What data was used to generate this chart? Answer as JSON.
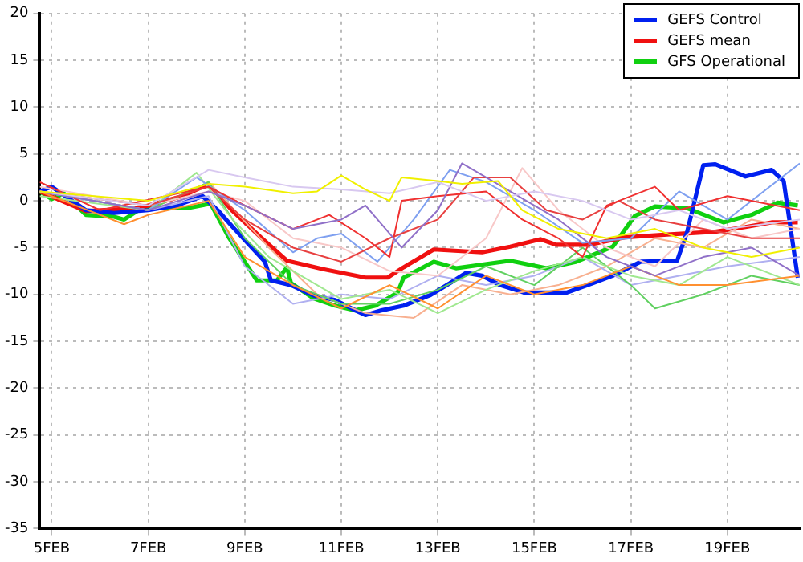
{
  "chart_data": {
    "type": "line",
    "xlim": [
      "--02-04T18:00",
      "--02-20T12:00"
    ],
    "ylim": [
      -35,
      20
    ],
    "xticks": [
      {
        "value": "--02-05",
        "label": "5FEB"
      },
      {
        "value": "--02-07",
        "label": "7FEB"
      },
      {
        "value": "--02-09",
        "label": "9FEB"
      },
      {
        "value": "--02-11",
        "label": "11FEB"
      },
      {
        "value": "--02-13",
        "label": "13FEB"
      },
      {
        "value": "--02-15",
        "label": "15FEB"
      },
      {
        "value": "--02-17",
        "label": "17FEB"
      },
      {
        "value": "--02-19",
        "label": "19FEB"
      }
    ],
    "yticks": [
      -35,
      -30,
      -25,
      -20,
      -15,
      -10,
      -5,
      0,
      5,
      10,
      15,
      20
    ],
    "grid": true,
    "legend": "top right",
    "series": [
      {
        "color": "#f0f000",
        "x": [
          "--02-04T18:00",
          "--02-07T00:00",
          "--02-08T06:00",
          "--02-09T00:00",
          "--02-10T00:00",
          "--02-10T12:00",
          "--02-11T00:00",
          "--02-11T12:00",
          "--02-12T00:00",
          "--02-12T06:00",
          "--02-13T00:00",
          "--02-13T12:00",
          "--02-14T06:00",
          "--02-14T18:00",
          "--02-15T12:00",
          "--02-16T12:00",
          "--02-17T12:00",
          "--02-18T12:00",
          "--02-19T12:00",
          "--02-20T12:00"
        ],
        "values": [
          1,
          0,
          1.8,
          1.5,
          0.8,
          1,
          2.7,
          1.2,
          0,
          2.5,
          2.1,
          1.8,
          2.1,
          -1,
          -3,
          -4,
          -3,
          -5,
          -6,
          -5
        ]
      },
      {
        "color": "#d8c8f0",
        "x": [
          "--02-04T18:00",
          "--02-07T00:00",
          "--02-08T06:00",
          "--02-09T00:00",
          "--02-10T00:00",
          "--02-11T00:00",
          "--02-12T00:00",
          "--02-13T00:00",
          "--02-14T00:00",
          "--02-15T00:00",
          "--02-16T00:00",
          "--02-17T00:00",
          "--02-18T00:00",
          "--02-19T00:00",
          "--02-20T12:00"
        ],
        "values": [
          1,
          -0.5,
          3.3,
          2.5,
          1.5,
          1.2,
          0.8,
          2,
          0,
          1,
          0,
          -2,
          -1,
          -3,
          -2
        ]
      },
      {
        "color": "#9070c8",
        "x": [
          "--02-04T18:00",
          "--02-07T00:00",
          "--02-08T06:00",
          "--02-09T00:00",
          "--02-10T00:00",
          "--02-11T00:00",
          "--02-11T12:00",
          "--02-12T06:00",
          "--02-13T00:00",
          "--02-13T12:00",
          "--02-14T12:00",
          "--02-15T12:00",
          "--02-16T12:00",
          "--02-17T12:00",
          "--02-18T12:00",
          "--02-19T12:00",
          "--02-20T12:00"
        ],
        "values": [
          1,
          -1,
          1,
          -0.5,
          -3,
          -2,
          -0.5,
          -5,
          -1,
          4,
          1,
          -2,
          -6,
          -8,
          -6,
          -5,
          -8
        ]
      },
      {
        "color": "#f03030",
        "x": [
          "--02-04T18:00",
          "--02-06T00:00",
          "--02-08T06:00",
          "--02-09T00:00",
          "--02-10T00:00",
          "--02-10T18:00",
          "--02-11T12:00",
          "--02-12T00:00",
          "--02-12T06:00",
          "--02-13T00:00",
          "--02-14T00:00",
          "--02-14T18:00",
          "--02-15T12:00",
          "--02-16T00:00",
          "--02-16T12:00",
          "--02-17T12:00",
          "--02-18T00:00",
          "--02-19T00:00",
          "--02-20T12:00"
        ],
        "values": [
          2,
          -1,
          1.5,
          -0.5,
          -3,
          -1.5,
          -4,
          -6,
          0,
          0.5,
          1,
          -2,
          -4,
          -6,
          -0.5,
          1.5,
          -1,
          0.5,
          -1
        ]
      },
      {
        "color": "#e84040",
        "x": [
          "--02-04T18:00",
          "--02-07T00:00",
          "--02-08T06:00",
          "--02-09T00:00",
          "--02-10T00:00",
          "--02-11T00:00",
          "--02-12T00:00",
          "--02-13T00:00",
          "--02-13T18:00",
          "--02-14T12:00",
          "--02-15T06:00",
          "--02-16T00:00",
          "--02-16T18:00",
          "--02-17T12:00",
          "--02-18T12:00",
          "--02-19T12:00",
          "--02-20T12:00"
        ],
        "values": [
          1,
          -0.5,
          1.5,
          -2,
          -5,
          -6.5,
          -4,
          -2,
          2.5,
          2.5,
          -1,
          -2,
          0,
          -2,
          -3,
          -4,
          -4
        ]
      },
      {
        "color": "#7fa0f0",
        "x": [
          "--02-04T18:00",
          "--02-07T00:00",
          "--02-08T00:00",
          "--02-09T00:00",
          "--02-10T00:00",
          "--02-10T12:00",
          "--02-11T00:00",
          "--02-11T18:00",
          "--02-12T12:00",
          "--02-13T06:00",
          "--02-14T00:00",
          "--02-15T00:00",
          "--02-16T00:00",
          "--02-17T00:00",
          "--02-18T00:00",
          "--02-19T00:00",
          "--02-20T12:00"
        ],
        "values": [
          1,
          -1,
          2.5,
          -1,
          -5.5,
          -4,
          -3.5,
          -6.5,
          -2,
          3.3,
          2,
          -1,
          -4.5,
          -4,
          1,
          -2,
          4
        ]
      },
      {
        "color": "#ff9030",
        "x": [
          "--02-04T18:00",
          "--02-06T12:00",
          "--02-07T00:00",
          "--02-08T06:00",
          "--02-09T00:00",
          "--02-10T00:00",
          "--02-11T00:00",
          "--02-12T00:00",
          "--02-13T00:00",
          "--02-14T00:00",
          "--02-15T00:00",
          "--02-16T00:00",
          "--02-17T00:00",
          "--02-18T00:00",
          "--02-19T00:00",
          "--02-20T12:00"
        ],
        "values": [
          1,
          -2.5,
          -1.5,
          0,
          -6,
          -9,
          -11.5,
          -9,
          -11.5,
          -8,
          -10,
          -9,
          -7,
          -9,
          -9,
          -8
        ]
      },
      {
        "color": "#a0e890",
        "x": [
          "--02-04T18:00",
          "--02-07T00:00",
          "--02-08T00:00",
          "--02-08T18:00",
          "--02-09T12:00",
          "--02-10T00:00",
          "--02-11T00:00",
          "--02-12T00:00",
          "--02-13T00:00",
          "--02-14T00:00",
          "--02-15T00:00",
          "--02-16T00:00",
          "--02-17T00:00",
          "--02-18T00:00",
          "--02-19T00:00",
          "--02-20T12:00"
        ],
        "values": [
          0.5,
          -1,
          3,
          -2,
          -6,
          -7.5,
          -10.5,
          -9.5,
          -12,
          -9.5,
          -7.5,
          -6,
          -8,
          -9,
          -6,
          -9
        ]
      },
      {
        "color": "#f8c8c8",
        "x": [
          "--02-04T18:00",
          "--02-07T00:00",
          "--02-08T06:00",
          "--02-09T00:00",
          "--02-10T00:00",
          "--02-11T00:00",
          "--02-12T00:00",
          "--02-13T00:00",
          "--02-14T00:00",
          "--02-14T18:00",
          "--02-15T12:00",
          "--02-16T12:00",
          "--02-17T12:00",
          "--02-18T12:00",
          "--02-19T12:00",
          "--02-20T12:00"
        ],
        "values": [
          1.5,
          -0.5,
          1,
          0,
          -4,
          -5,
          -7.5,
          -8,
          -4,
          3.5,
          -1,
          -5,
          -7,
          -2,
          -4,
          -3
        ]
      },
      {
        "color": "#60d060",
        "x": [
          "--02-04T18:00",
          "--02-07T00:00",
          "--02-08T06:00",
          "--02-09T00:00",
          "--02-10T00:00",
          "--02-11T00:00",
          "--02-12T00:00",
          "--02-13T00:00",
          "--02-14T00:00",
          "--02-15T00:00",
          "--02-16T00:00",
          "--02-17T00:00",
          "--02-17T12:00",
          "--02-18T12:00",
          "--02-19T12:00",
          "--02-20T12:00"
        ],
        "values": [
          1,
          -1,
          2,
          -4,
          -9,
          -11,
          -11,
          -9.5,
          -7,
          -9,
          -5,
          -9,
          -11.5,
          -10,
          -8,
          -9
        ]
      },
      {
        "color": "#b0b0f0",
        "x": [
          "--02-04T18:00",
          "--02-07T00:00",
          "--02-08T06:00",
          "--02-09T00:00",
          "--02-10T00:00",
          "--02-11T00:00",
          "--02-12T00:00",
          "--02-13T00:00",
          "--02-14T00:00",
          "--02-15T00:00",
          "--02-16T00:00",
          "--02-17T00:00",
          "--02-18T00:00",
          "--02-19T00:00",
          "--02-20T12:00"
        ],
        "values": [
          1,
          -1,
          0.5,
          -7,
          -11,
          -10,
          -10.5,
          -8,
          -9,
          -8,
          -6,
          -9,
          -8,
          -7,
          -6
        ]
      },
      {
        "color": "#f8b090",
        "x": [
          "--02-04T18:00",
          "--02-07T00:00",
          "--02-08T06:00",
          "--02-09T12:00",
          "--02-10T12:00",
          "--02-11T12:00",
          "--02-12T12:00",
          "--02-13T12:00",
          "--02-14T12:00",
          "--02-15T12:00",
          "--02-16T12:00",
          "--02-17T12:00",
          "--02-18T12:00",
          "--02-19T12:00",
          "--02-20T12:00"
        ],
        "values": [
          1,
          -1,
          2,
          -5,
          -10,
          -12,
          -12.5,
          -9,
          -10,
          -9,
          -7,
          -4,
          -5,
          -2,
          -3
        ]
      },
      {
        "name": "GEFS Control",
        "color": "#0020f0",
        "x": [
          "--02-04T18:00",
          "--02-05T00:00",
          "--02-05T17:00",
          "--02-06T07:00",
          "--02-07T00:00",
          "--02-07T14:00",
          "--02-08T03:00",
          "--02-08T11:00",
          "--02-08T18:00",
          "--02-09T10:00",
          "--02-09T13:00",
          "--02-09T23:00",
          "--02-10T10:00",
          "--02-10T21:00",
          "--02-11T07:00",
          "--02-11T12:00",
          "--02-11T20:00",
          "--02-12T07:00",
          "--02-12T20:00",
          "--02-13T06:00",
          "--02-13T14:00",
          "--02-13T22:00",
          "--02-14T07:00",
          "--02-14T19:00",
          "--02-15T16:00",
          "--02-16T05:00",
          "--02-16T15:00",
          "--02-17T05:00",
          "--02-17T23:00",
          "--02-18T04:00",
          "--02-18T12:00",
          "--02-18T18:00",
          "--02-19T09:00",
          "--02-19T22:00",
          "--02-20T04:00",
          "--02-20T11:00"
        ],
        "values": [
          1,
          1.5,
          -1,
          -1.3,
          -1,
          -0.5,
          0.5,
          -1.1,
          -2.8,
          -6.5,
          -8.5,
          -9,
          -10.1,
          -10.6,
          -11.7,
          -12.2,
          -11.7,
          -11.2,
          -10.1,
          -8.8,
          -7.7,
          -8,
          -9,
          -9.8,
          -9.8,
          -8.8,
          -8,
          -6.5,
          -6.4,
          -3.3,
          3.8,
          3.9,
          2.6,
          3.3,
          2.1,
          -8.2
        ]
      },
      {
        "name": "GEFS mean",
        "color": "#f01010",
        "x": [
          "--02-04T18:00",
          "--02-05T17:00",
          "--02-06T19:00",
          "--02-07T17:00",
          "--02-08T06:00",
          "--02-08T18:00",
          "--02-09T08:00",
          "--02-09T21:00",
          "--02-10T15:00",
          "--02-11T12:00",
          "--02-11T23:00",
          "--02-12T07:00",
          "--02-12T22:00",
          "--02-13T22:00",
          "--02-14T12:00",
          "--02-15T03:00",
          "--02-15T11:00",
          "--02-16T03:00",
          "--02-16T21:00",
          "--02-17T18:00",
          "--02-18T18:00",
          "--02-19T09:00",
          "--02-19T22:00",
          "--02-20T11:00"
        ],
        "values": [
          1,
          -1.1,
          -0.8,
          0.5,
          1.8,
          -1.1,
          -3.9,
          -6.4,
          -7.3,
          -8.2,
          -8.2,
          -7.1,
          -5.2,
          -5.5,
          -4.9,
          -4.1,
          -4.7,
          -4.7,
          -3.9,
          -3.6,
          -3.3,
          -2.8,
          -2.3,
          -2.3
        ]
      },
      {
        "name": "GFS Operational",
        "color": "#10d010",
        "x": [
          "--02-04T18:00",
          "--02-05T00:00",
          "--02-05T06:00",
          "--02-05T17:00",
          "--02-06T07:00",
          "--02-06T12:00",
          "--02-06T22:00",
          "--02-07T06:00",
          "--02-07T19:00",
          "--02-08T07:00",
          "--02-08T16:00",
          "--02-09T06:00",
          "--02-09T16:00",
          "--02-09T21:00",
          "--02-09T23:00",
          "--02-10T10:00",
          "--02-10T21:00",
          "--02-11T07:00",
          "--02-11T17:00",
          "--02-12T04:00",
          "--02-12T07:00",
          "--02-12T22:00",
          "--02-13T09:00",
          "--02-14T12:00",
          "--02-15T06:00",
          "--02-15T21:00",
          "--02-16T15:00",
          "--02-17T02:00",
          "--02-17T12:00",
          "--02-18T04:00",
          "--02-18T22:00",
          "--02-19T12:00",
          "--02-20T01:00",
          "--02-20T11:00"
        ],
        "values": [
          1,
          0.2,
          0.8,
          -1.5,
          -1.7,
          -2,
          -0.6,
          -0.8,
          -0.8,
          -0.3,
          -3.9,
          -8.5,
          -8.5,
          -7.1,
          -8.8,
          -10.4,
          -11.2,
          -11.7,
          -11.2,
          -9.8,
          -8.2,
          -6.5,
          -7.2,
          -6.4,
          -7.2,
          -6.5,
          -4.9,
          -1.6,
          -0.6,
          -0.8,
          -2.3,
          -1.5,
          -0.2,
          -0.5
        ]
      }
    ]
  }
}
